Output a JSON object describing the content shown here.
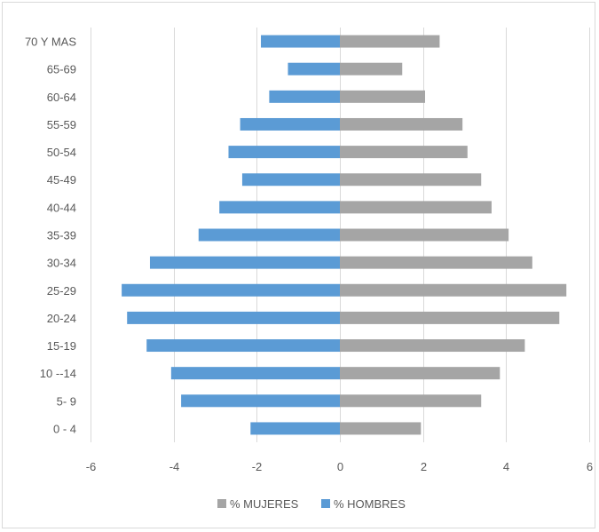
{
  "chart_data": {
    "type": "bar",
    "orientation": "horizontal",
    "categories": [
      "70 Y MAS",
      "65-69",
      "60-64",
      "55-59",
      "50-54",
      "45-49",
      "40-44",
      "35-39",
      "30-34",
      "25-29",
      "20-24",
      "15-19",
      "10 --14",
      "5- 9",
      "0 - 4"
    ],
    "series": [
      {
        "name": "% MUJERES",
        "color": "#a5a5a5",
        "values": [
          2.4,
          1.5,
          2.05,
          2.95,
          3.07,
          3.4,
          3.65,
          4.06,
          4.63,
          5.45,
          5.28,
          4.45,
          3.85,
          3.4,
          1.95
        ]
      },
      {
        "name": "% HOMBRES",
        "color": "#5b9bd5",
        "values": [
          -1.9,
          -1.25,
          -1.7,
          -2.4,
          -2.68,
          -2.35,
          -2.9,
          -3.4,
          -4.57,
          -5.25,
          -5.12,
          -4.65,
          -4.06,
          -3.82,
          -2.15
        ]
      }
    ],
    "x_ticks": [
      "-6",
      "-4",
      "-2",
      "0",
      "2",
      "4",
      "6"
    ],
    "xlim": [
      -6,
      6
    ],
    "grid": "vertical",
    "legend_position": "bottom"
  }
}
